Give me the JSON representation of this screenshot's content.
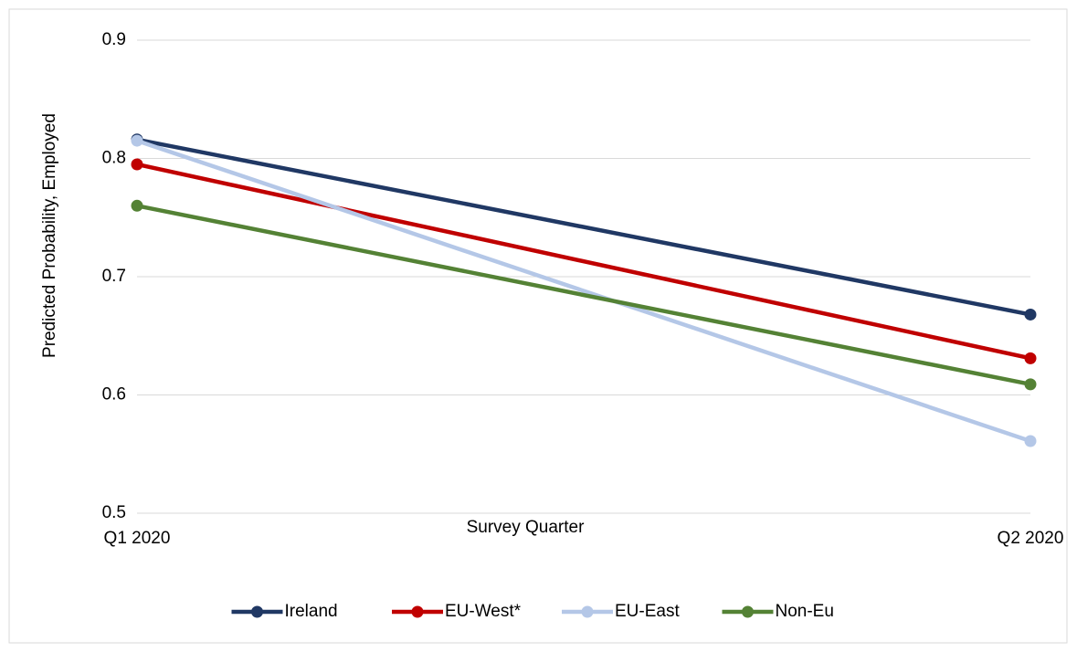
{
  "chart_data": {
    "type": "line",
    "y_label": "Predicted Probability, Employed",
    "x_label": "Survey Quarter",
    "categories": [
      "Q1 2020",
      "Q2 2020"
    ],
    "series": [
      {
        "name": "Ireland",
        "color": "#203864",
        "values": [
          0.816,
          0.668
        ]
      },
      {
        "name": "EU-West*",
        "color": "#c00000",
        "values": [
          0.795,
          0.631
        ]
      },
      {
        "name": "EU-East",
        "color": "#b4c7e7",
        "values": [
          0.815,
          0.561
        ]
      },
      {
        "name": "Non-Eu",
        "color": "#548235",
        "values": [
          0.76,
          0.609
        ]
      }
    ],
    "ylim": [
      0.5,
      0.9
    ],
    "yticks": [
      0.5,
      0.6,
      0.7,
      0.8,
      0.9
    ],
    "grid": true,
    "legend": "bottom"
  }
}
